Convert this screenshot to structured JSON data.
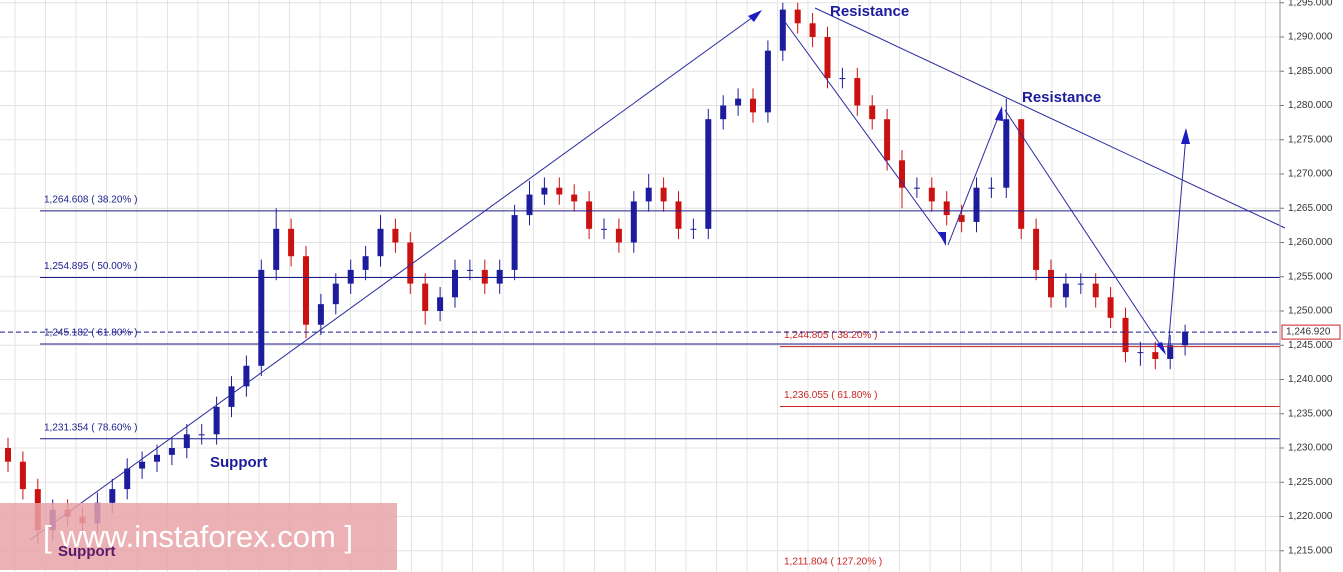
{
  "chart_data": {
    "type": "candlestick",
    "ylim": [
      1211.9,
      1295.4
    ],
    "yticks": [
      {
        "value": 1215,
        "label": "1,215.000"
      },
      {
        "value": 1220,
        "label": "1,220.000"
      },
      {
        "value": 1225,
        "label": "1,225.000"
      },
      {
        "value": 1230,
        "label": "1,230.000"
      },
      {
        "value": 1235,
        "label": "1,235.000"
      },
      {
        "value": 1240,
        "label": "1,240.000"
      },
      {
        "value": 1245,
        "label": "1,245.000"
      },
      {
        "value": 1250,
        "label": "1,250.000"
      },
      {
        "value": 1255,
        "label": "1,255.000"
      },
      {
        "value": 1260,
        "label": "1,260.000"
      },
      {
        "value": 1265,
        "label": "1,265.000"
      },
      {
        "value": 1270,
        "label": "1,270.000"
      },
      {
        "value": 1275,
        "label": "1,275.000"
      },
      {
        "value": 1280,
        "label": "1,280.000"
      },
      {
        "value": 1285,
        "label": "1,285.000"
      },
      {
        "value": 1290,
        "label": "1,290.000"
      },
      {
        "value": 1295,
        "label": "1,295.000"
      }
    ],
    "grid": true,
    "up_color": "#1c1c9c",
    "down_color": "#cc1111",
    "open": [
      1230,
      1228,
      1224,
      1218,
      1221,
      1220,
      1219,
      1222,
      1224,
      1227,
      1228,
      1229,
      1230,
      1232,
      1232,
      1236,
      1239,
      1242,
      1256,
      1262,
      1258,
      1248,
      1251,
      1254,
      1256,
      1258,
      1262,
      1260,
      1254,
      1250,
      1252,
      1256,
      1256,
      1254,
      1256,
      1264,
      1267,
      1268,
      1267,
      1266,
      1262,
      1262,
      1260,
      1266,
      1268,
      1266,
      1262,
      1262,
      1278,
      1280,
      1281,
      1279,
      1288,
      1294,
      1292,
      1290,
      1284,
      1284,
      1280,
      1278,
      1272,
      1268,
      1268,
      1266,
      1264,
      1263,
      1268,
      1268,
      1278,
      1262,
      1256,
      1252,
      1254,
      1254,
      1252,
      1249,
      1244,
      1244,
      1243,
      1245
    ],
    "high": [
      1231.5,
      1229.5,
      1225.5,
      1222.5,
      1222.5,
      1221.5,
      1223.5,
      1225.5,
      1228.5,
      1229.5,
      1230.5,
      1231.5,
      1233.5,
      1233.5,
      1237.5,
      1240.5,
      1243.5,
      1257.5,
      1265,
      1263.5,
      1259.5,
      1252.5,
      1255.5,
      1257.5,
      1259.5,
      1264,
      1263.5,
      1261.5,
      1255.5,
      1253.5,
      1257.5,
      1257.5,
      1257.5,
      1257.5,
      1265.5,
      1269,
      1269.5,
      1269.5,
      1268.5,
      1267.5,
      1263.5,
      1263.5,
      1267.5,
      1270,
      1269.5,
      1267.5,
      1263.5,
      1279.5,
      1281.5,
      1282.5,
      1282.5,
      1289.5,
      1295,
      1295,
      1293.5,
      1291.5,
      1285.5,
      1285.5,
      1281.5,
      1279.5,
      1273.5,
      1269.5,
      1269.5,
      1267.5,
      1265.5,
      1269.5,
      1269.5,
      1281,
      1278,
      1263.5,
      1257.5,
      1255.5,
      1255.5,
      1255.5,
      1253.5,
      1250.5,
      1245.5,
      1245.5,
      1246.5,
      1248
    ],
    "low": [
      1226.5,
      1222.5,
      1216,
      1216.5,
      1218.5,
      1217.5,
      1217.5,
      1220.5,
      1222.5,
      1225.5,
      1226.5,
      1227.5,
      1228.5,
      1230.5,
      1230.5,
      1234.5,
      1237.5,
      1240.5,
      1254.5,
      1256.5,
      1246,
      1246.5,
      1249.5,
      1252.5,
      1254.5,
      1256.5,
      1258.5,
      1252.5,
      1248,
      1248.5,
      1250.5,
      1254.5,
      1252.5,
      1252.5,
      1254.5,
      1262.5,
      1265.5,
      1265.5,
      1264.5,
      1260.5,
      1260.5,
      1258.5,
      1258.5,
      1264.5,
      1264.5,
      1260.5,
      1260.5,
      1260.5,
      1276.5,
      1278.5,
      1277.5,
      1277.5,
      1286.5,
      1290.5,
      1288.5,
      1282.5,
      1282.5,
      1278.5,
      1276.5,
      1270.5,
      1265,
      1266.5,
      1264.5,
      1262.5,
      1261.5,
      1261.5,
      1266.5,
      1266.5,
      1260.5,
      1254.5,
      1250.5,
      1250.5,
      1252.5,
      1250.5,
      1247.5,
      1242.5,
      1242,
      1241.5,
      1241.5,
      1243.5
    ],
    "close": [
      1228,
      1224,
      1218,
      1221,
      1220,
      1219,
      1222,
      1224,
      1227,
      1228,
      1229,
      1230,
      1232,
      1232,
      1236,
      1239,
      1242,
      1256,
      1262,
      1258,
      1248,
      1251,
      1254,
      1256,
      1258,
      1262,
      1260,
      1254,
      1250,
      1252,
      1256,
      1256,
      1254,
      1256,
      1264,
      1267,
      1268,
      1267,
      1266,
      1262,
      1262,
      1260,
      1266,
      1268,
      1266,
      1262,
      1262,
      1278,
      1280,
      1281,
      1279,
      1288,
      1294,
      1292,
      1290,
      1284,
      1284,
      1280,
      1278,
      1272,
      1268,
      1268,
      1266,
      1264,
      1263,
      1268,
      1268,
      1278,
      1262,
      1256,
      1252,
      1254,
      1254,
      1252,
      1249,
      1244,
      1244,
      1243,
      1245,
      1247
    ],
    "fib_left": {
      "color": "#1c1c8c",
      "levels": [
        {
          "value": 1264.608,
          "label": "1,264.608 ( 38.20% )"
        },
        {
          "value": 1254.895,
          "label": "1,254.895 ( 50.00% )"
        },
        {
          "value": 1245.182,
          "label": "1,245.182 ( 61.80% )"
        },
        {
          "value": 1231.354,
          "label": "1,231.354 ( 78.60% )"
        }
      ]
    },
    "fib_right": {
      "color": "#cc2222",
      "levels": [
        {
          "value": 1244.805,
          "label": "1,244.805 ( 38.20% )"
        },
        {
          "value": 1236.055,
          "label": "1,236.055 ( 61.80% )"
        },
        {
          "value": 1211.804,
          "label": "1,211.804 ( 127.20% )"
        }
      ]
    },
    "current_price": {
      "value": 1246.92,
      "label": "1,246.920"
    },
    "annotations": [
      "Resistance",
      "Resistance",
      "Support",
      "Support"
    ],
    "watermark": "[ www.instaforex.com ]"
  }
}
